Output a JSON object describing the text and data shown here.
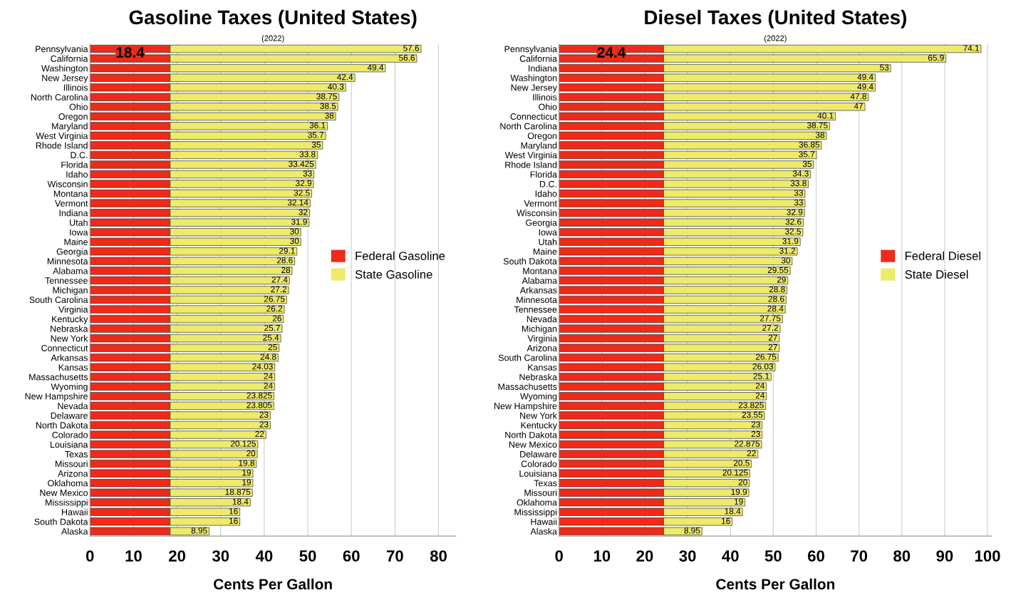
{
  "chart_data": [
    {
      "type": "bar",
      "orientation": "horizontal",
      "stacked": true,
      "title": "Gasoline Taxes (United States)",
      "subtitle": "(2022)",
      "xlabel": "Cents Per Gallon",
      "xlim": [
        0,
        84
      ],
      "xticks": [
        0,
        10,
        20,
        30,
        40,
        50,
        60,
        70,
        80
      ],
      "grid": "x",
      "legend": "right",
      "categories": [
        "Pennsylvania",
        "California",
        "Washington",
        "New Jersey",
        "Illinois",
        "North Carolina",
        "Ohio",
        "Oregon",
        "Maryland",
        "West Virginia",
        "Rhode Island",
        "D.C.",
        "Florida",
        "Idaho",
        "Wisconsin",
        "Montana",
        "Vermont",
        "Indiana",
        "Utah",
        "Iowa",
        "Maine",
        "Georgia",
        "Minnesota",
        "Alabama",
        "Tennessee",
        "Michigan",
        "South Carolina",
        "Virginia",
        "Kentucky",
        "Nebraska",
        "New York",
        "Connecticut",
        "Arkansas",
        "Kansas",
        "Massachusetts",
        "Wyoming",
        "New Hampshire",
        "Nevada",
        "Delaware",
        "North Dakota",
        "Colorado",
        "Louisiana",
        "Texas",
        "Missouri",
        "Arizona",
        "Oklahoma",
        "New Mexico",
        "Mississippi",
        "Hawaii",
        "South Dakota",
        "Alaska"
      ],
      "series": [
        {
          "name": "Federal Gasoline",
          "color": "#ee2a1a",
          "values": [
            18.4,
            18.4,
            18.4,
            18.4,
            18.4,
            18.4,
            18.4,
            18.4,
            18.4,
            18.4,
            18.4,
            18.4,
            18.4,
            18.4,
            18.4,
            18.4,
            18.4,
            18.4,
            18.4,
            18.4,
            18.4,
            18.4,
            18.4,
            18.4,
            18.4,
            18.4,
            18.4,
            18.4,
            18.4,
            18.4,
            18.4,
            18.4,
            18.4,
            18.4,
            18.4,
            18.4,
            18.4,
            18.4,
            18.4,
            18.4,
            18.4,
            18.4,
            18.4,
            18.4,
            18.4,
            18.4,
            18.4,
            18.4,
            18.4,
            18.4,
            18.4
          ],
          "value_labels": [
            "18.4",
            null,
            null,
            null,
            null,
            null,
            null,
            null,
            null,
            null,
            null,
            null,
            null,
            null,
            null,
            null,
            null,
            null,
            null,
            null,
            null,
            null,
            null,
            null,
            null,
            null,
            null,
            null,
            null,
            null,
            null,
            null,
            null,
            null,
            null,
            null,
            null,
            null,
            null,
            null,
            null,
            null,
            null,
            null,
            null,
            null,
            null,
            null,
            null,
            null,
            null
          ]
        },
        {
          "name": "State Gasoline",
          "color": "#eeea6a",
          "values": [
            57.6,
            56.6,
            49.4,
            42.4,
            40.3,
            38.75,
            38.5,
            38,
            36.1,
            35.7,
            35,
            33.8,
            33.425,
            33,
            32.9,
            32.5,
            32.14,
            32,
            31.9,
            30,
            30,
            29.1,
            28.6,
            28,
            27.4,
            27.2,
            26.75,
            26.2,
            26,
            25.7,
            25.4,
            25,
            24.8,
            24.03,
            24,
            24,
            23.825,
            23.805,
            23,
            23,
            22,
            20.125,
            20,
            19.8,
            19,
            19,
            18.875,
            18.4,
            16,
            16,
            8.95
          ],
          "value_labels": [
            "57.6",
            "56.6",
            "49.4",
            "42.4",
            "40.3",
            "38.75",
            "38.5",
            "38",
            "36.1",
            "35.7",
            "35",
            "33.8",
            "33.425",
            "33",
            "32.9",
            "32.5",
            "32.14",
            "32",
            "31.9",
            "30",
            "30",
            "29.1",
            "28.6",
            "28",
            "27.4",
            "27.2",
            "26.75",
            "26.2",
            "26",
            "25.7",
            "25.4",
            "25",
            "24.8",
            "24.03",
            "24",
            "24",
            "23.825",
            "23.805",
            "23",
            "23",
            "22",
            "20.125",
            "20",
            "19.8",
            "19",
            "19",
            "18.875",
            "18.4",
            "16",
            "16",
            "8.95"
          ]
        }
      ]
    },
    {
      "type": "bar",
      "orientation": "horizontal",
      "stacked": true,
      "title": "Diesel Taxes (United States)",
      "subtitle": "(2022)",
      "xlabel": "Cents Per Gallon",
      "xlim": [
        0,
        101
      ],
      "xticks": [
        0,
        10,
        20,
        30,
        40,
        50,
        60,
        70,
        80,
        90,
        100
      ],
      "grid": "x",
      "legend": "right",
      "categories": [
        "Pennsylvania",
        "California",
        "Indiana",
        "Washington",
        "New Jersey",
        "Illinois",
        "Ohio",
        "Connecticut",
        "North Carolina",
        "Oregon",
        "Maryland",
        "West Virginia",
        "Rhode Island",
        "Florida",
        "D.C.",
        "Idaho",
        "Vermont",
        "Wisconsin",
        "Georgia",
        "Iowa",
        "Utah",
        "Maine",
        "South Dakota",
        "Montana",
        "Alabama",
        "Arkansas",
        "Minnesota",
        "Tennessee",
        "Nevada",
        "Michigan",
        "Virginia",
        "Arizona",
        "South Carolina",
        "Kansas",
        "Nebraska",
        "Massachusetts",
        "Wyoming",
        "New Hampshire",
        "New York",
        "Kentucky",
        "North Dakota",
        "New Mexico",
        "Delaware",
        "Colorado",
        "Louisiana",
        "Texas",
        "Missouri",
        "Oklahoma",
        "Mississippi",
        "Hawaii",
        "Alaska"
      ],
      "series": [
        {
          "name": "Federal Diesel",
          "color": "#ee2a1a",
          "values": [
            24.4,
            24.4,
            24.4,
            24.4,
            24.4,
            24.4,
            24.4,
            24.4,
            24.4,
            24.4,
            24.4,
            24.4,
            24.4,
            24.4,
            24.4,
            24.4,
            24.4,
            24.4,
            24.4,
            24.4,
            24.4,
            24.4,
            24.4,
            24.4,
            24.4,
            24.4,
            24.4,
            24.4,
            24.4,
            24.4,
            24.4,
            24.4,
            24.4,
            24.4,
            24.4,
            24.4,
            24.4,
            24.4,
            24.4,
            24.4,
            24.4,
            24.4,
            24.4,
            24.4,
            24.4,
            24.4,
            24.4,
            24.4,
            24.4,
            24.4,
            24.4
          ],
          "value_labels": [
            "24.4",
            null,
            null,
            null,
            null,
            null,
            null,
            null,
            null,
            null,
            null,
            null,
            null,
            null,
            null,
            null,
            null,
            null,
            null,
            null,
            null,
            null,
            null,
            null,
            null,
            null,
            null,
            null,
            null,
            null,
            null,
            null,
            null,
            null,
            null,
            null,
            null,
            null,
            null,
            null,
            null,
            null,
            null,
            null,
            null,
            null,
            null,
            null,
            null,
            null,
            null
          ]
        },
        {
          "name": "State Diesel",
          "color": "#eeea6a",
          "values": [
            74.1,
            65.9,
            53,
            49.4,
            49.4,
            47.8,
            47,
            40.1,
            38.75,
            38,
            36.85,
            35.7,
            35,
            34.3,
            33.8,
            33,
            33,
            32.9,
            32.6,
            32.5,
            31.9,
            31.2,
            30,
            29.55,
            29,
            28.8,
            28.6,
            28.4,
            27.75,
            27.2,
            27,
            27,
            26.75,
            26.03,
            25.1,
            24,
            24,
            23.825,
            23.55,
            23,
            23,
            22.875,
            22,
            20.5,
            20.125,
            20,
            19.9,
            19,
            18.4,
            16,
            8.95
          ],
          "value_labels": [
            "74.1",
            "65.9",
            "53",
            "49.4",
            "49.4",
            "47.8",
            "47",
            "40.1",
            "38.75",
            "38",
            "36.85",
            "35.7",
            "35",
            "34.3",
            "33.8",
            "33",
            "33",
            "32.9",
            "32.6",
            "32.5",
            "31.9",
            "31.2",
            "30",
            "29.55",
            "29",
            "28.8",
            "28.6",
            "28.4",
            "27.75",
            "27.2",
            "27",
            "27",
            "26.75",
            "26.03",
            "25.1",
            "24",
            "24",
            "23.825",
            "23.55",
            "23",
            "23",
            "22.875",
            "22",
            "20.5",
            "20.125",
            "20",
            "19.9",
            "19",
            "18.4",
            "16",
            "8.95"
          ]
        }
      ]
    }
  ]
}
